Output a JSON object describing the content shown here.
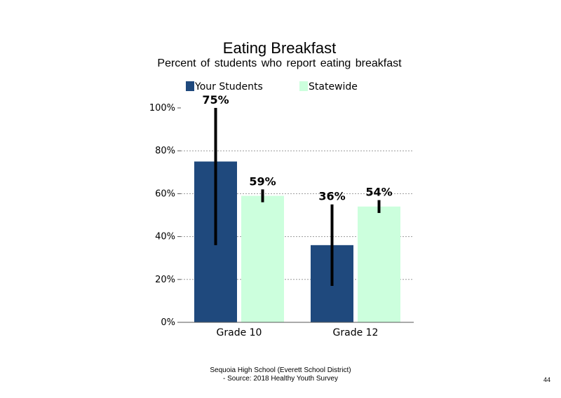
{
  "chart_data": {
    "type": "bar",
    "title": "Eating Breakfast",
    "subtitle": "Percent of students who report eating breakfast",
    "categories": [
      "Grade 10",
      "Grade 12"
    ],
    "series": [
      {
        "name": "Your Students",
        "color": "#1f497d",
        "values": [
          75,
          36
        ],
        "labels": [
          "75%",
          "36%"
        ],
        "error_low": [
          36,
          17
        ],
        "error_high": [
          100,
          55
        ]
      },
      {
        "name": "Statewide",
        "color": "#ccffdd",
        "values": [
          59,
          54
        ],
        "labels": [
          "59%",
          "54%"
        ],
        "error_low": [
          56,
          51
        ],
        "error_high": [
          62,
          57
        ]
      }
    ],
    "y_ticks": [
      "0%",
      "20%",
      "40%",
      "60%",
      "80%",
      "100%"
    ],
    "ylim": [
      0,
      100
    ],
    "grid": true,
    "legend_position": "top"
  },
  "footer": {
    "line1": "Sequoia High School (Everett School District)",
    "line2": "- Source: 2018 Healthy Youth Survey"
  },
  "page_number": "44"
}
